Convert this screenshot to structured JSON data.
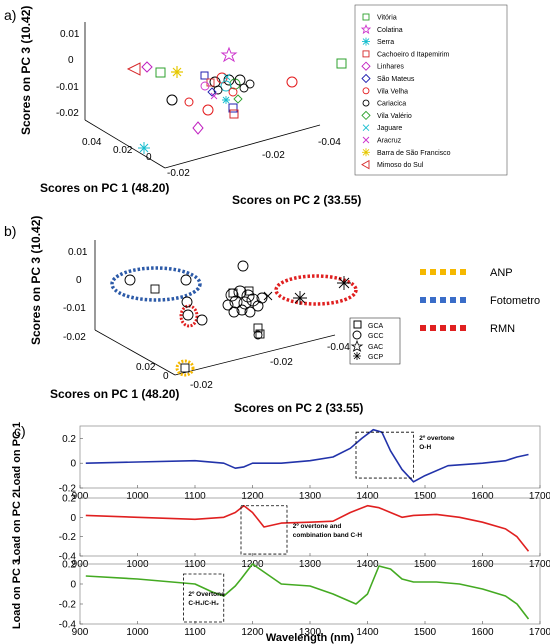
{
  "panel_labels": [
    "a)",
    "b)",
    "c)"
  ],
  "chart_data": [
    {
      "type": "scatter",
      "title": "",
      "xlabel": "Scores on PC 1 (48.20)",
      "ylabel": "Scores on PC 2 (33.55)",
      "zlabel": "Scores on PC 3 (10.42)",
      "z_ticks": [
        "0.01",
        "0",
        "-0.01",
        "-0.02"
      ],
      "x_ticks": [
        "0.04",
        "0.02",
        "0",
        "-0.02"
      ],
      "y_ticks": [
        "-0.02",
        "-0.04"
      ],
      "legend": {
        "placement": "right",
        "entries": [
          {
            "label": "Vitória",
            "marker": "square",
            "color": "#2ca02c"
          },
          {
            "label": "Colatina",
            "marker": "star",
            "color": "#cc33cc"
          },
          {
            "label": "Serra",
            "marker": "asterisk",
            "color": "#17becf"
          },
          {
            "label": "Cachoeiro d Itapemirim",
            "marker": "square",
            "color": "#d62728"
          },
          {
            "label": "Linhares",
            "marker": "diamond",
            "color": "#c020c0"
          },
          {
            "label": "São Mateus",
            "marker": "diamond",
            "color": "#2020b0"
          },
          {
            "label": "Vila Velha",
            "marker": "circle",
            "color": "#e31a1c"
          },
          {
            "label": "Cariacica",
            "marker": "circle",
            "color": "#000000"
          },
          {
            "label": "Vila Valério",
            "marker": "diamond",
            "color": "#2ca02c"
          },
          {
            "label": "Jaguare",
            "marker": "x",
            "color": "#17becf"
          },
          {
            "label": "Aracruz",
            "marker": "x",
            "color": "#cc33cc"
          },
          {
            "label": "Barra de São Francisco",
            "marker": "asterisk",
            "color": "#e6c800"
          },
          {
            "label": "Mimoso do Sul",
            "marker": "triangle-left",
            "color": "#d62728"
          }
        ]
      },
      "points": [
        {
          "group": "Vitória",
          "pc1": 0.02,
          "pc2": -0.04,
          "pc3": 0.005
        },
        {
          "group": "Vitória",
          "pc1": 0.035,
          "pc2": -0.01,
          "pc3": 0.002
        },
        {
          "group": "Colatina",
          "pc1": 0.005,
          "pc2": -0.015,
          "pc3": 0.012
        },
        {
          "group": "Serra",
          "pc1": 0.03,
          "pc2": 0.0,
          "pc3": -0.021
        },
        {
          "group": "Serra",
          "pc1": 0.012,
          "pc2": -0.008,
          "pc3": -0.004
        },
        {
          "group": "Cachoeiro d Itapemirim",
          "pc1": 0.012,
          "pc2": -0.01,
          "pc3": -0.008
        },
        {
          "group": "Cachoeiro d Itapemirim",
          "pc1": 0.008,
          "pc2": -0.012,
          "pc3": 0.001
        },
        {
          "group": "Linhares",
          "pc1": 0.04,
          "pc2": 0.01,
          "pc3": 0.008
        },
        {
          "group": "Linhares",
          "pc1": 0.025,
          "pc2": -0.005,
          "pc3": -0.01
        },
        {
          "group": "São Mateus",
          "pc1": 0.006,
          "pc2": -0.014,
          "pc3": -0.003
        },
        {
          "group": "Vila Velha",
          "pc1": 0.04,
          "pc2": 0.008,
          "pc3": 0.005
        },
        {
          "group": "Vila Velha",
          "pc1": 0.02,
          "pc2": -0.005,
          "pc3": -0.004
        },
        {
          "group": "Vila Velha",
          "pc1": 0.025,
          "pc2": -0.02,
          "pc3": -0.006
        },
        {
          "group": "Vila Velha",
          "pc1": 0.015,
          "pc2": -0.03,
          "pc3": 0.002
        },
        {
          "group": "Cariacica",
          "pc1": 0.03,
          "pc2": 0.0,
          "pc3": -0.003
        },
        {
          "group": "Cariacica",
          "pc1": 0.005,
          "pc2": -0.01,
          "pc3": -0.001
        },
        {
          "group": "Cariacica",
          "pc1": 0.0,
          "pc2": -0.01,
          "pc3": 0.0
        },
        {
          "group": "Cariacica",
          "pc1": 0.002,
          "pc2": -0.008,
          "pc3": -0.002
        },
        {
          "group": "Vila Valério",
          "pc1": 0.004,
          "pc2": -0.009,
          "pc3": -0.001
        },
        {
          "group": "Jaguare",
          "pc1": 0.003,
          "pc2": -0.011,
          "pc3": 0.0
        },
        {
          "group": "Aracruz",
          "pc1": 0.004,
          "pc2": -0.01,
          "pc3": -0.002
        },
        {
          "group": "Barra de São Francisco",
          "pc1": 0.04,
          "pc2": 0.0,
          "pc3": 0.002
        },
        {
          "group": "Mimoso do Sul",
          "pc1": 0.045,
          "pc2": 0.01,
          "pc3": 0.006
        }
      ]
    },
    {
      "type": "scatter",
      "title": "",
      "xlabel": "Scores on PC 1 (48.20)",
      "ylabel": "Scores on PC 2 (33.55)",
      "zlabel": "Scores on PC 3 (10.42)",
      "z_ticks": [
        "0.01",
        "0",
        "-0.01",
        "-0.02"
      ],
      "x_ticks": [
        "0.02",
        "0"
      ],
      "y_ticks": [
        "-0.02",
        "-0.04"
      ],
      "legend": {
        "placement": "bottom-right",
        "entries": [
          {
            "label": "GCA",
            "marker": "square"
          },
          {
            "label": "GCC",
            "marker": "circle"
          },
          {
            "label": "GAC",
            "marker": "star"
          },
          {
            "label": "GCP",
            "marker": "asterisk"
          }
        ]
      },
      "groupings": [
        {
          "label": "ANP",
          "color": "#f5b800"
        },
        {
          "label": "Fotometro",
          "color": "#3a6dc8"
        },
        {
          "label": "RMN",
          "color": "#e02020"
        }
      ]
    },
    {
      "type": "line",
      "xlabel": "Wavelength (nm)",
      "x_ticks": [
        900,
        1000,
        1100,
        1200,
        1300,
        1400,
        1500,
        1600,
        1700
      ],
      "xlim": [
        900,
        1700
      ],
      "series": [
        {
          "name": "Load on PC 1",
          "color": "#2233aa",
          "ylim": [
            -0.2,
            0.3
          ],
          "y_ticks": [
            "0.2",
            "0",
            "-0.2"
          ],
          "x": [
            910,
            1000,
            1100,
            1150,
            1170,
            1185,
            1200,
            1250,
            1300,
            1340,
            1370,
            1390,
            1410,
            1425,
            1440,
            1460,
            1480,
            1500,
            1540,
            1600,
            1640,
            1660,
            1680
          ],
          "y": [
            0.0,
            0.01,
            0.02,
            0.0,
            -0.04,
            -0.03,
            0.0,
            0.0,
            0.02,
            0.05,
            0.12,
            0.2,
            0.27,
            0.25,
            0.1,
            -0.05,
            -0.15,
            -0.1,
            -0.02,
            0.0,
            0.02,
            0.05,
            0.07
          ]
        },
        {
          "name": "Load on PC 2",
          "color": "#e02020",
          "ylim": [
            -0.4,
            0.2
          ],
          "y_ticks": [
            "0.2",
            "0",
            "-0.2",
            "-0.4"
          ],
          "x": [
            910,
            1000,
            1100,
            1150,
            1170,
            1185,
            1200,
            1220,
            1250,
            1300,
            1340,
            1370,
            1400,
            1420,
            1440,
            1460,
            1480,
            1520,
            1560,
            1600,
            1640,
            1660,
            1680
          ],
          "y": [
            0.02,
            0.0,
            -0.02,
            0.0,
            0.05,
            0.12,
            0.05,
            -0.1,
            -0.06,
            -0.05,
            -0.04,
            0.05,
            0.12,
            0.1,
            0.05,
            0.0,
            0.02,
            0.03,
            0.0,
            -0.05,
            -0.12,
            -0.2,
            -0.35
          ]
        },
        {
          "name": "Load on PC 3",
          "color": "#44aa22",
          "ylim": [
            -0.4,
            0.2
          ],
          "y_ticks": [
            "0.2",
            "0",
            "-0.2",
            "-0.4"
          ],
          "x": [
            910,
            1000,
            1100,
            1130,
            1150,
            1170,
            1180,
            1200,
            1220,
            1250,
            1300,
            1340,
            1360,
            1380,
            1400,
            1420,
            1440,
            1460,
            1480,
            1520,
            1560,
            1600,
            1640,
            1660,
            1680
          ],
          "y": [
            0.08,
            0.05,
            0.0,
            -0.08,
            -0.12,
            -0.02,
            0.05,
            0.2,
            0.12,
            0.0,
            -0.02,
            -0.1,
            -0.15,
            -0.2,
            -0.1,
            0.18,
            0.15,
            0.05,
            0.02,
            0.02,
            0.0,
            -0.05,
            -0.12,
            -0.2,
            -0.35
          ]
        }
      ],
      "annotations": [
        {
          "panel": 0,
          "lines": [
            "2º overtone",
            "O-H"
          ]
        },
        {
          "panel": 1,
          "lines": [
            "2º overtone and",
            "combination band C-H"
          ]
        },
        {
          "panel": 2,
          "lines": [
            "2º Overtone",
            "C-H₁/C-H₂"
          ]
        }
      ]
    }
  ]
}
